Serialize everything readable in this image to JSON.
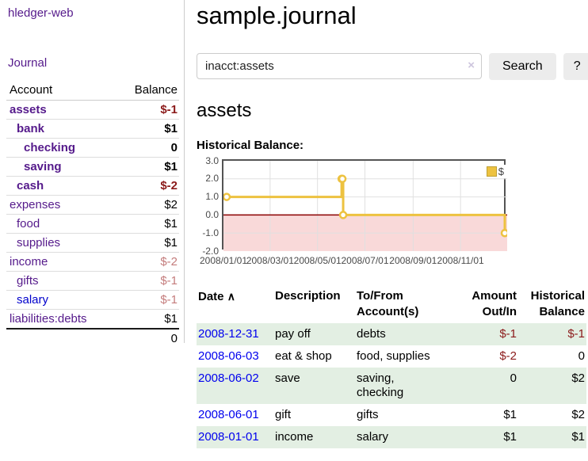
{
  "sidebar": {
    "brand": "hledger-web",
    "journal_label": "Journal",
    "header": {
      "account": "Account",
      "balance": "Balance"
    },
    "accounts": [
      {
        "name": "assets",
        "balance": "$-1",
        "level": 1,
        "bold": true,
        "balance_style": "neg-strong",
        "link_style": "purple"
      },
      {
        "name": "bank",
        "balance": "$1",
        "level": 2,
        "bold": true,
        "balance_style": "",
        "link_style": "purple"
      },
      {
        "name": "checking",
        "balance": "0",
        "level": 3,
        "bold": true,
        "balance_style": "",
        "link_style": "purple"
      },
      {
        "name": "saving",
        "balance": "$1",
        "level": 3,
        "bold": true,
        "balance_style": "",
        "link_style": "purple"
      },
      {
        "name": "cash",
        "balance": "$-2",
        "level": 2,
        "bold": true,
        "balance_style": "neg-strong",
        "link_style": "purple"
      },
      {
        "name": "expenses",
        "balance": "$2",
        "level": 1,
        "bold": false,
        "balance_style": "",
        "link_style": "purple"
      },
      {
        "name": "food",
        "balance": "$1",
        "level": 2,
        "bold": false,
        "balance_style": "",
        "link_style": "purple"
      },
      {
        "name": "supplies",
        "balance": "$1",
        "level": 2,
        "bold": false,
        "balance_style": "",
        "link_style": "purple"
      },
      {
        "name": "income",
        "balance": "$-2",
        "level": 1,
        "bold": false,
        "balance_style": "neg-weak",
        "link_style": "purple"
      },
      {
        "name": "gifts",
        "balance": "$-1",
        "level": 2,
        "bold": false,
        "balance_style": "neg-weak",
        "link_style": "purple"
      },
      {
        "name": "salary",
        "balance": "$-1",
        "level": 2,
        "bold": false,
        "balance_style": "neg-weak",
        "link_style": "blue"
      },
      {
        "name": "liabilities:debts",
        "balance": "$1",
        "level": 1,
        "bold": false,
        "balance_style": "",
        "link_style": "purple"
      }
    ],
    "total": "0"
  },
  "main": {
    "title": "sample.journal",
    "search": {
      "value": "inacct:assets",
      "clear_icon": "×",
      "search_label": "Search",
      "help_label": "?"
    },
    "account_heading": "assets",
    "chart_heading": "Historical Balance:"
  },
  "chart_data": {
    "type": "line",
    "style": "steps",
    "title": "Historical Balance:",
    "legend": [
      {
        "label": "$",
        "color": "#edc240"
      }
    ],
    "series": [
      {
        "name": "$",
        "points": [
          [
            "2008-01-01",
            1
          ],
          [
            "2008-06-01",
            2
          ],
          [
            "2008-06-02",
            2
          ],
          [
            "2008-06-03",
            0
          ],
          [
            "2008-12-31",
            -1
          ]
        ]
      }
    ],
    "xrange": [
      "2008-01-01",
      "2008-12-31"
    ],
    "ylim": [
      -2,
      3
    ],
    "yticks": [
      {
        "v": 3,
        "label": "3.0"
      },
      {
        "v": 2,
        "label": "2.0"
      },
      {
        "v": 1,
        "label": "1.0"
      },
      {
        "v": 0,
        "label": "0.0"
      },
      {
        "v": -1,
        "label": "-1.0"
      },
      {
        "v": -2,
        "label": "-2.0"
      }
    ],
    "xticks": [
      {
        "date": "2008-01-01",
        "label": "2008/01/01"
      },
      {
        "date": "2008-03-01",
        "label": "2008/03/01"
      },
      {
        "date": "2008-05-01",
        "label": "2008/05/01"
      },
      {
        "date": "2008-07-01",
        "label": "2008/07/01"
      },
      {
        "date": "2008-09-01",
        "label": "2008/09/01"
      },
      {
        "date": "2008-11-01",
        "label": "2008/11/01"
      }
    ],
    "grid": true,
    "legend_position": "top-right",
    "line_color": "#edc240",
    "negative_region_color": "#f9d9d9",
    "zero_line_color": "#8b0000",
    "grid_color": "#e0e0e0",
    "border_color": "#545454"
  },
  "register": {
    "headers": {
      "date": "Date",
      "sort_arrow": "∧",
      "description": "Description",
      "accounts": "To/From\nAccount(s)",
      "amount": "Amount\nOut/In",
      "balance": "Historical\nBalance"
    },
    "rows": [
      {
        "date": "2008-12-31",
        "description": "pay off",
        "accounts": "debts",
        "amount": "$-1",
        "balance": "$-1",
        "amount_neg": true,
        "balance_neg": true,
        "shaded": true
      },
      {
        "date": "2008-06-03",
        "description": "eat & shop",
        "accounts": "food, supplies",
        "amount": "$-2",
        "balance": "0",
        "amount_neg": true,
        "balance_neg": false,
        "shaded": false
      },
      {
        "date": "2008-06-02",
        "description": "save",
        "accounts": "saving,\nchecking",
        "amount": "0",
        "balance": "$2",
        "amount_neg": false,
        "balance_neg": false,
        "shaded": true
      },
      {
        "date": "2008-06-01",
        "description": "gift",
        "accounts": "gifts",
        "amount": "$1",
        "balance": "$2",
        "amount_neg": false,
        "balance_neg": false,
        "shaded": false
      },
      {
        "date": "2008-01-01",
        "description": "income",
        "accounts": "salary",
        "amount": "$1",
        "balance": "$1",
        "amount_neg": false,
        "balance_neg": false,
        "shaded": true
      }
    ]
  }
}
